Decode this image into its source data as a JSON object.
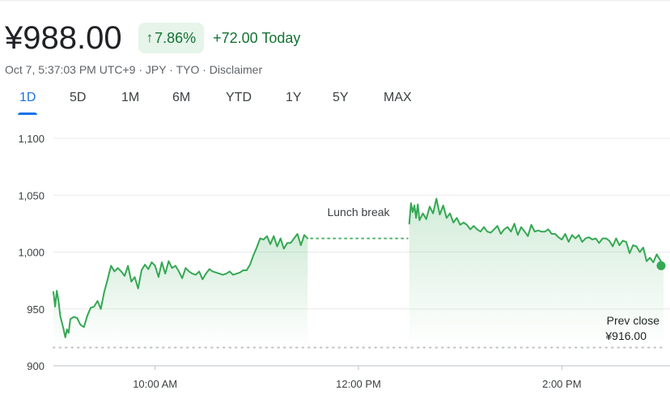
{
  "header": {
    "price": "¥988.00",
    "percent_change": "7.86%",
    "abs_change": "+72.00 Today",
    "timestamp": "Oct 7, 5:37:03 PM UTC+9",
    "currency": "JPY",
    "exchange": "TYO",
    "disclaimer": "Disclaimer",
    "separator": " · "
  },
  "tabs": [
    {
      "label": "1D",
      "active": true
    },
    {
      "label": "5D",
      "active": false
    },
    {
      "label": "1M",
      "active": false
    },
    {
      "label": "6M",
      "active": false
    },
    {
      "label": "YTD",
      "active": false
    },
    {
      "label": "1Y",
      "active": false
    },
    {
      "label": "5Y",
      "active": false
    },
    {
      "label": "MAX",
      "active": false
    }
  ],
  "colors": {
    "positive": "#137333",
    "line": "#34a853",
    "accent": "#1a73e8",
    "positive_bg": "#e6f4ea"
  },
  "chart_data": {
    "type": "line",
    "ylim": [
      900,
      1100
    ],
    "yticks": [
      900,
      950,
      1000,
      1050,
      1100
    ],
    "ytick_labels": [
      "900",
      "950",
      "1,000",
      "1,050",
      "1,100"
    ],
    "xticks": [
      "10:00",
      "12:00",
      "14:00"
    ],
    "xtick_labels": [
      "10:00 AM",
      "12:00 PM",
      "2:00 PM"
    ],
    "xlim": [
      "09:00",
      "15:00"
    ],
    "grid": true,
    "lunch_break": {
      "start": "11:30",
      "end": "12:30",
      "label": "Lunch break",
      "level": 1012
    },
    "prev_close": {
      "label": "Prev close",
      "value_label": "¥916.00",
      "value": 916
    },
    "last_point": {
      "time": "15:00",
      "value": 988
    },
    "series": [
      {
        "segments": [
          {
            "times": [
              "09:00",
              "09:01",
              "09:02",
              "09:03",
              "09:04",
              "09:05",
              "09:06",
              "09:07",
              "09:08",
              "09:09",
              "09:10",
              "09:12",
              "09:14",
              "09:16",
              "09:18",
              "09:20",
              "09:22",
              "09:24",
              "09:26",
              "09:28",
              "09:30",
              "09:32",
              "09:34",
              "09:36",
              "09:38",
              "09:40",
              "09:42",
              "09:44",
              "09:46",
              "09:48",
              "09:50",
              "09:52",
              "09:54",
              "09:56",
              "09:58",
              "10:00",
              "10:02",
              "10:04",
              "10:06",
              "10:08",
              "10:10",
              "10:12",
              "10:14",
              "10:16",
              "10:18",
              "10:20",
              "10:22",
              "10:24",
              "10:26",
              "10:28",
              "10:30",
              "10:32",
              "10:34",
              "10:36",
              "10:38",
              "10:40",
              "10:42",
              "10:44",
              "10:46",
              "10:48",
              "10:50",
              "10:52",
              "10:54",
              "10:56",
              "10:58",
              "11:00",
              "11:02",
              "11:04",
              "11:06",
              "11:08",
              "11:10",
              "11:12",
              "11:14",
              "11:16",
              "11:18",
              "11:20",
              "11:22",
              "11:24",
              "11:26",
              "11:28",
              "11:30"
            ],
            "values": [
              965,
              952,
              966,
              957,
              944,
              938,
              932,
              925,
              932,
              929,
              941,
              943,
              942,
              936,
              934,
              944,
              951,
              952,
              957,
              950,
              965,
              976,
              988,
              983,
              986,
              983,
              979,
              988,
              974,
              978,
              968,
              984,
              989,
              985,
              991,
              988,
              978,
              991,
              981,
              992,
              986,
              988,
              983,
              977,
              986,
              983,
              981,
              980,
              983,
              976,
              981,
              985,
              983,
              982,
              981,
              980,
              981,
              983,
              980,
              981,
              982,
              984,
              984,
              989,
              997,
              1004,
              1012,
              1011,
              1014,
              1007,
              1014,
              1005,
              1012,
              1003,
              1008,
              1008,
              1012,
              1016,
              1006,
              1015,
              1012
            ]
          },
          {
            "times": [
              "12:30",
              "12:31",
              "12:32",
              "12:33",
              "12:34",
              "12:35",
              "12:36",
              "12:38",
              "12:40",
              "12:42",
              "12:44",
              "12:46",
              "12:48",
              "12:50",
              "12:52",
              "12:54",
              "12:56",
              "12:58",
              "13:00",
              "13:02",
              "13:04",
              "13:06",
              "13:08",
              "13:10",
              "13:12",
              "13:14",
              "13:16",
              "13:18",
              "13:20",
              "13:22",
              "13:24",
              "13:26",
              "13:28",
              "13:30",
              "13:32",
              "13:34",
              "13:36",
              "13:38",
              "13:40",
              "13:42",
              "13:44",
              "13:46",
              "13:48",
              "13:50",
              "13:52",
              "13:54",
              "13:56",
              "13:58",
              "14:00",
              "14:02",
              "14:04",
              "14:06",
              "14:08",
              "14:10",
              "14:12",
              "14:14",
              "14:16",
              "14:18",
              "14:20",
              "14:22",
              "14:24",
              "14:26",
              "14:28",
              "14:30",
              "14:32",
              "14:34",
              "14:36",
              "14:38",
              "14:40",
              "14:42",
              "14:44",
              "14:46",
              "14:48",
              "14:50",
              "14:52",
              "14:54",
              "14:56",
              "14:58",
              "15:00"
            ],
            "values": [
              1025,
              1043,
              1035,
              1041,
              1030,
              1042,
              1028,
              1034,
              1029,
              1040,
              1034,
              1047,
              1033,
              1041,
              1030,
              1034,
              1026,
              1030,
              1024,
              1026,
              1024,
              1020,
              1023,
              1020,
              1018,
              1022,
              1018,
              1017,
              1020,
              1023,
              1016,
              1020,
              1022,
              1018,
              1025,
              1015,
              1022,
              1018,
              1014,
              1024,
              1018,
              1019,
              1018,
              1018,
              1020,
              1016,
              1016,
              1013,
              1011,
              1016,
              1009,
              1015,
              1012,
              1015,
              1009,
              1012,
              1013,
              1011,
              1012,
              1008,
              1012,
              1012,
              1010,
              1005,
              1012,
              1006,
              1010,
              1009,
              999,
              1006,
              1005,
              1000,
              1004,
              992,
              995,
              991,
              998,
              993,
              988
            ]
          }
        ]
      }
    ]
  }
}
